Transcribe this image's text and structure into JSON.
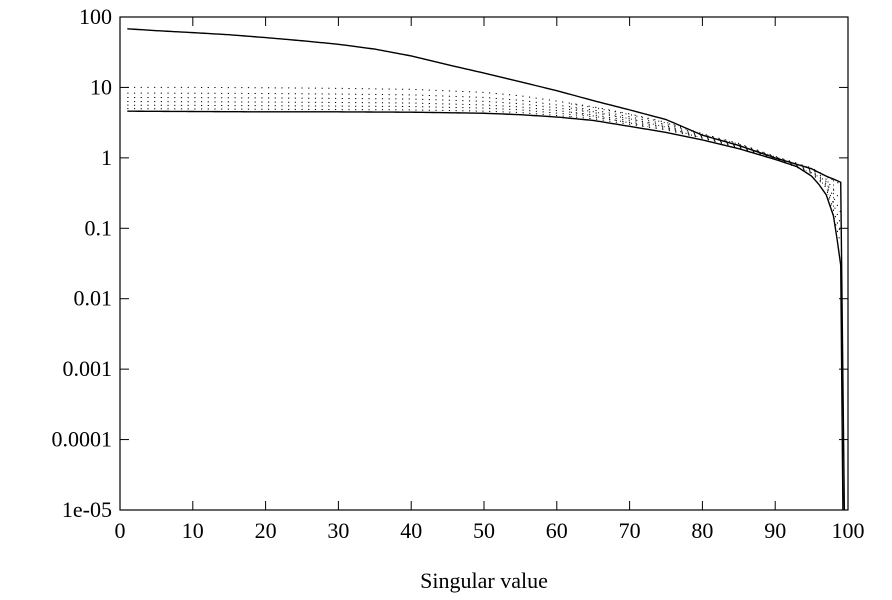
{
  "chart_data": {
    "type": "line",
    "title": "",
    "xlabel": "Singular value",
    "ylabel": "",
    "xlim": [
      0,
      100
    ],
    "ylim": [
      1e-05,
      100
    ],
    "yscale": "log",
    "grid": false,
    "x_ticks": [
      0,
      10,
      20,
      30,
      40,
      50,
      60,
      70,
      80,
      90,
      100
    ],
    "x_tick_labels": [
      "0",
      "10",
      "20",
      "30",
      "40",
      "50",
      "60",
      "70",
      "80",
      "90",
      "100"
    ],
    "y_ticks": [
      1e-05,
      0.0001,
      0.001,
      0.01,
      0.1,
      1,
      10,
      100
    ],
    "y_tick_labels": [
      "1e-05",
      "0.0001",
      "0.001",
      "0.01",
      "0.1",
      "1",
      "10",
      "100"
    ],
    "series": [
      {
        "style": "solid",
        "x": [
          1,
          5,
          10,
          15,
          20,
          25,
          30,
          35,
          40,
          45,
          50,
          55,
          60,
          65,
          70,
          75,
          80,
          85,
          90,
          95,
          97,
          98,
          99,
          99.5
        ],
        "values": [
          68,
          64,
          60,
          56,
          51,
          46,
          41,
          35,
          28,
          21,
          16,
          12,
          9,
          6.5,
          4.8,
          3.5,
          2.1,
          1.5,
          1.0,
          0.7,
          0.55,
          0.5,
          0.45,
          1e-05
        ]
      },
      {
        "style": "solid",
        "x": [
          1,
          10,
          20,
          30,
          40,
          50,
          55,
          60,
          65,
          70,
          75,
          80,
          85,
          90,
          93,
          95,
          96,
          97,
          98,
          98.5,
          99,
          99.3
        ],
        "values": [
          4.6,
          4.55,
          4.5,
          4.5,
          4.45,
          4.3,
          4.1,
          3.8,
          3.4,
          2.8,
          2.3,
          1.8,
          1.35,
          0.95,
          0.75,
          0.55,
          0.42,
          0.3,
          0.15,
          0.07,
          0.03,
          1e-05
        ]
      },
      {
        "style": "dotted",
        "band_of_lines": true,
        "start_values": [
          10,
          8.3,
          7.2,
          6.3,
          5.6,
          5.0
        ],
        "x": [
          1,
          10,
          20,
          30,
          40,
          50,
          55,
          60,
          65,
          70,
          75,
          80,
          85,
          90,
          95,
          97,
          99
        ],
        "upper_values": [
          10,
          10,
          9.9,
          9.7,
          9.4,
          8.5,
          7.6,
          6.4,
          5.3,
          4.2,
          3.2,
          2.2,
          1.6,
          1.05,
          0.72,
          0.55,
          0.42
        ],
        "lower_values": [
          5.0,
          4.95,
          4.9,
          4.85,
          4.8,
          4.6,
          4.4,
          4.0,
          3.6,
          3.0,
          2.5,
          1.9,
          1.4,
          0.98,
          0.6,
          0.38,
          0.06
        ]
      }
    ]
  }
}
